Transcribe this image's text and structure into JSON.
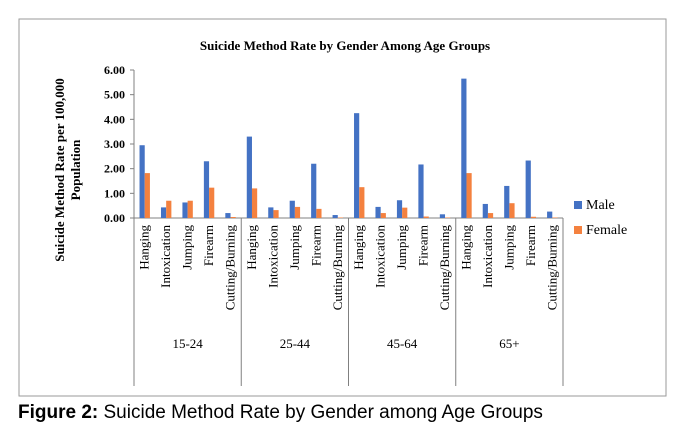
{
  "caption": {
    "prefix": "Figure 2:",
    "text": " Suicide Method Rate by Gender among Age Groups"
  },
  "chart_data": {
    "type": "bar",
    "title": "Suicide Method Rate by Gender Among Age Groups",
    "ylabel_lines": [
      "Suicide Method Rate per 100,000",
      "Population"
    ],
    "ylim": [
      0,
      6
    ],
    "yticks": [
      "0.00",
      "1.00",
      "2.00",
      "3.00",
      "4.00",
      "5.00",
      "6.00"
    ],
    "grid": false,
    "legend_position": "right",
    "groups": [
      "15-24",
      "25-44",
      "45-64",
      "65+"
    ],
    "categories": [
      "Hanging",
      "Intoxication",
      "Jumping",
      "Firearm",
      "Cutting/Burning"
    ],
    "series": [
      {
        "name": "Male",
        "color": "#4472c4",
        "values": [
          [
            2.95,
            0.43,
            0.63,
            2.3,
            0.2
          ],
          [
            3.3,
            0.43,
            0.7,
            2.2,
            0.12
          ],
          [
            4.25,
            0.45,
            0.72,
            2.17,
            0.15
          ],
          [
            5.65,
            0.57,
            1.3,
            2.33,
            0.26
          ]
        ]
      },
      {
        "name": "Female",
        "color": "#f4813f",
        "values": [
          [
            1.82,
            0.7,
            0.7,
            1.23,
            0.04
          ],
          [
            1.2,
            0.32,
            0.45,
            0.37,
            0.02
          ],
          [
            1.25,
            0.2,
            0.42,
            0.06,
            0.02
          ],
          [
            1.82,
            0.2,
            0.6,
            0.05,
            0.02
          ]
        ]
      }
    ]
  }
}
